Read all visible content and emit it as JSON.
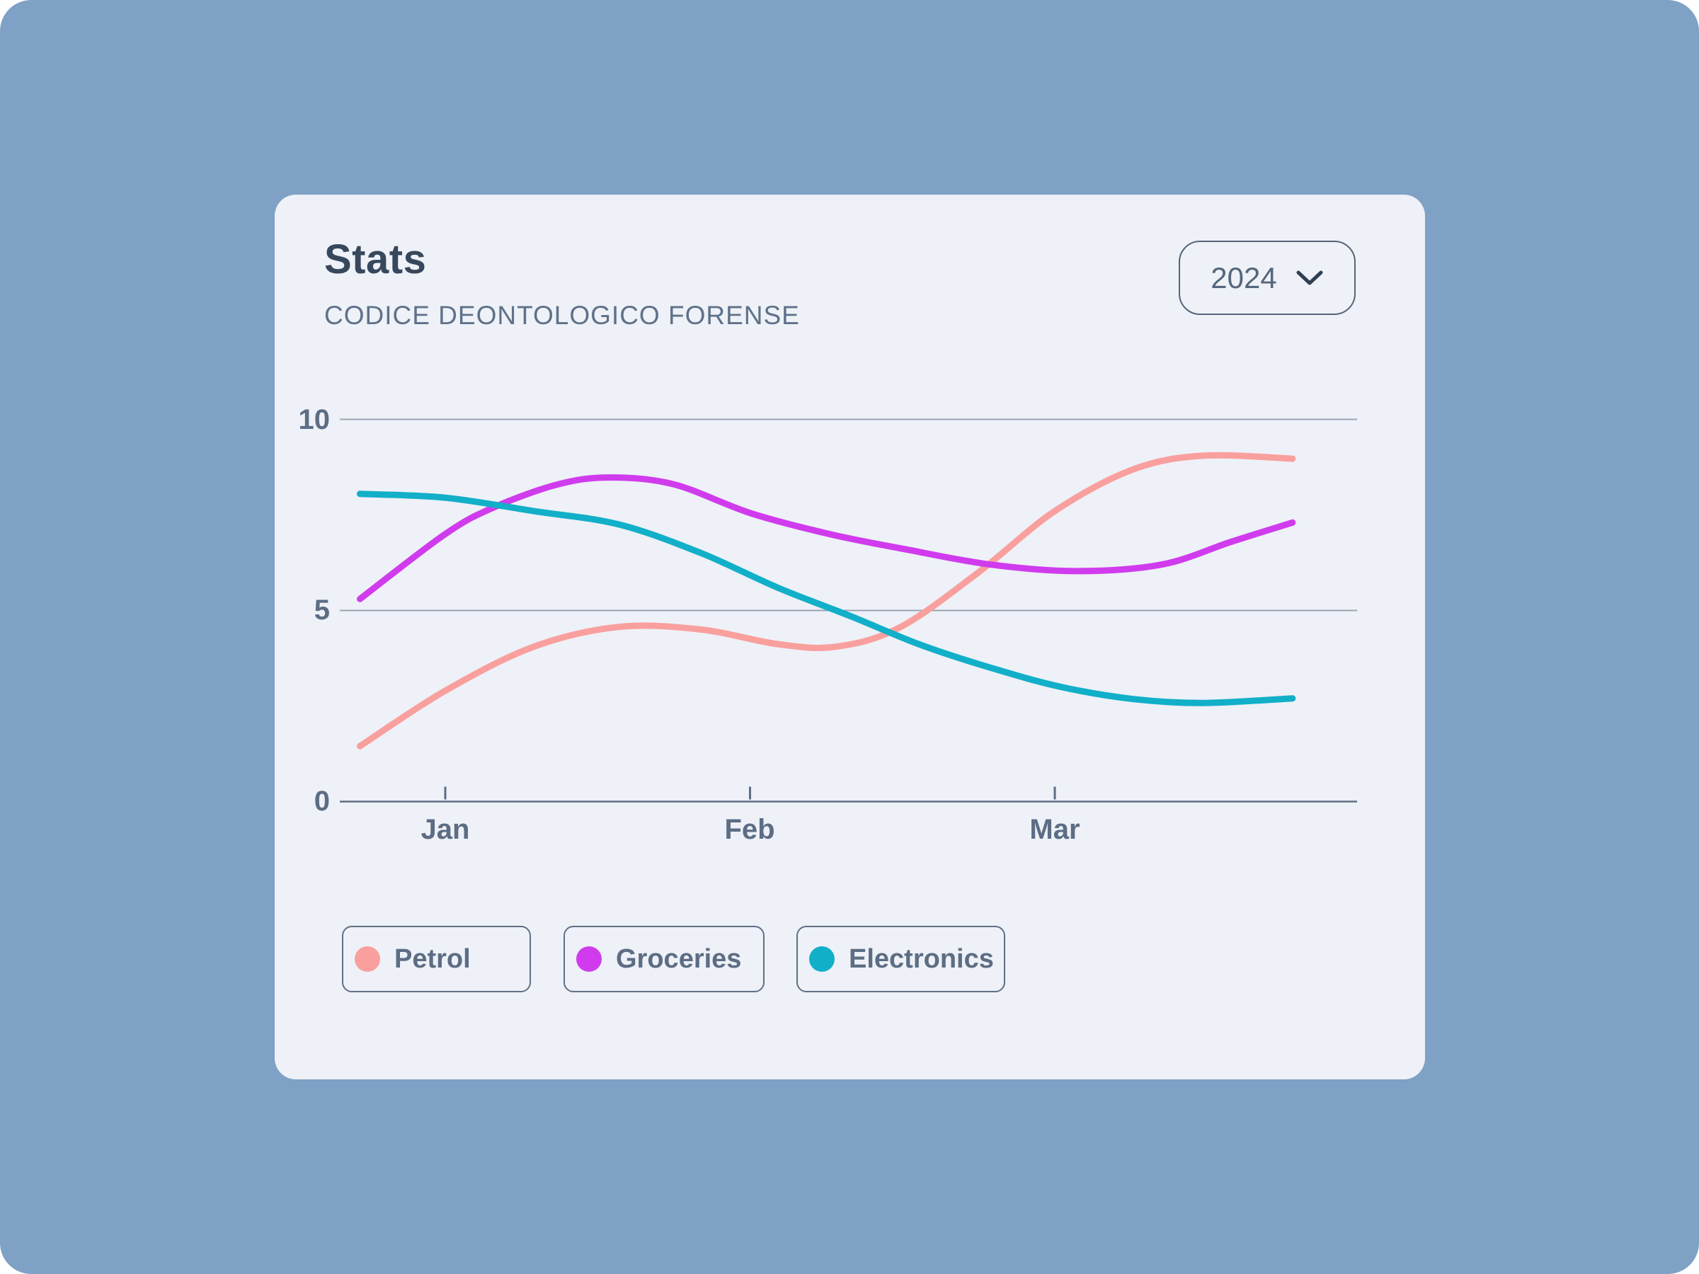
{
  "header": {
    "title": "Stats",
    "subtitle": "CODICE DEONTOLOGICO FORENSE"
  },
  "year_selector": {
    "value": "2024"
  },
  "legend": [
    {
      "label": "Petrol",
      "color": "#f9a09e"
    },
    {
      "label": "Groceries",
      "color": "#d03ced"
    },
    {
      "label": "Electronics",
      "color": "#12afc9"
    }
  ],
  "colors": {
    "page_background": "#7fa1c5",
    "card_background": "#eef1f7",
    "title_text": "#37475c",
    "subtitle_text": "#5f7189",
    "axis_text": "#5c6d84",
    "grid_line": "#64748b"
  },
  "chart_data": {
    "type": "line",
    "title": "Stats",
    "xlabel": "",
    "ylabel": "",
    "x_tick_labels": [
      "Jan",
      "Feb",
      "Mar"
    ],
    "x_tick_positions": [
      1,
      2,
      3
    ],
    "y_ticks": [
      0,
      5,
      10
    ],
    "ylim": [
      0,
      10
    ],
    "xlim": [
      0.72,
      3.78
    ],
    "grid": "horizontal",
    "legend_position": "bottom",
    "series": [
      {
        "name": "Petrol",
        "color": "#f9a09e",
        "points": [
          [
            0.72,
            1.45
          ],
          [
            1.0,
            2.9
          ],
          [
            1.29,
            4.05
          ],
          [
            1.57,
            4.57
          ],
          [
            1.84,
            4.5
          ],
          [
            2.09,
            4.12
          ],
          [
            2.28,
            4.05
          ],
          [
            2.49,
            4.55
          ],
          [
            2.75,
            6.0
          ],
          [
            3.0,
            7.6
          ],
          [
            3.26,
            8.7
          ],
          [
            3.49,
            9.05
          ],
          [
            3.78,
            8.97
          ]
        ]
      },
      {
        "name": "Groceries",
        "color": "#d03ced",
        "points": [
          [
            0.72,
            5.3
          ],
          [
            1.0,
            7.0
          ],
          [
            1.16,
            7.7
          ],
          [
            1.37,
            8.3
          ],
          [
            1.54,
            8.48
          ],
          [
            1.75,
            8.3
          ],
          [
            2.0,
            7.55
          ],
          [
            2.26,
            7.0
          ],
          [
            2.51,
            6.6
          ],
          [
            2.79,
            6.2
          ],
          [
            3.07,
            6.03
          ],
          [
            3.35,
            6.2
          ],
          [
            3.58,
            6.8
          ],
          [
            3.78,
            7.3
          ]
        ]
      },
      {
        "name": "Electronics",
        "color": "#12afc9",
        "points": [
          [
            0.72,
            8.05
          ],
          [
            1.0,
            7.95
          ],
          [
            1.29,
            7.6
          ],
          [
            1.57,
            7.25
          ],
          [
            1.84,
            6.5
          ],
          [
            2.09,
            5.6
          ],
          [
            2.33,
            4.85
          ],
          [
            2.56,
            4.1
          ],
          [
            2.79,
            3.5
          ],
          [
            3.02,
            3.0
          ],
          [
            3.26,
            2.68
          ],
          [
            3.49,
            2.58
          ],
          [
            3.78,
            2.7
          ]
        ]
      }
    ]
  }
}
